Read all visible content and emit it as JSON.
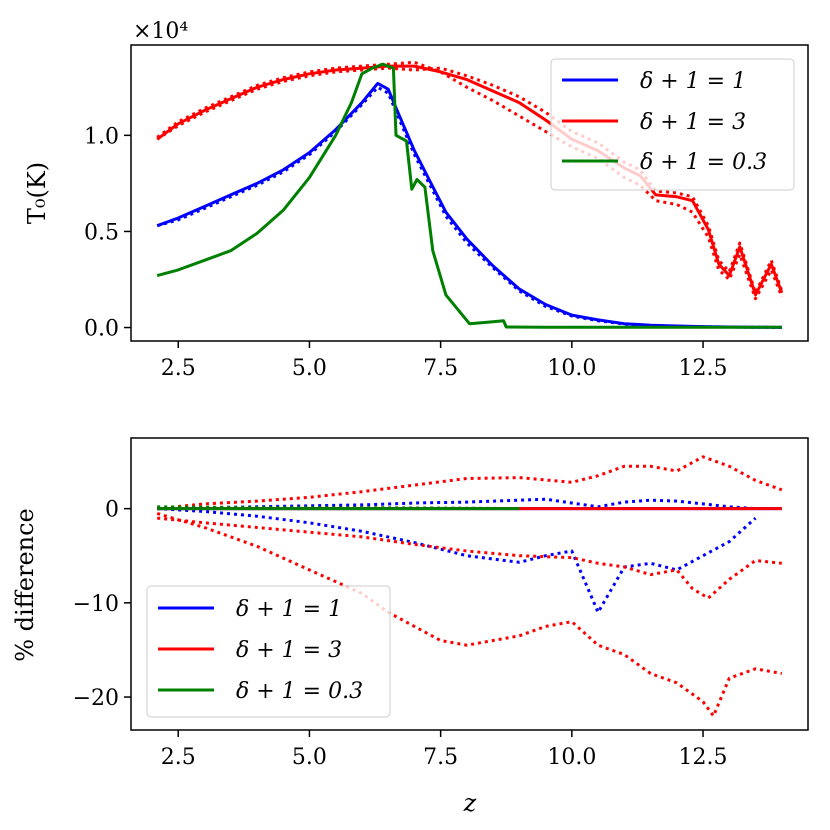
{
  "chart_data": [
    {
      "type": "line",
      "panel": "top",
      "xlabel": "",
      "ylabel": "T_0(K)",
      "ylabel_display": "T₀(K)",
      "y_offset_text": "×10⁴",
      "xlim": [
        1.6,
        14.5
      ],
      "ylim": [
        -0.07,
        1.47
      ],
      "xticks": [
        2.5,
        5.0,
        7.5,
        10.0,
        12.5
      ],
      "xtick_labels": [
        "2.5",
        "5.0",
        "7.5",
        "10.0",
        "12.5"
      ],
      "yticks": [
        0.0,
        0.5,
        1.0
      ],
      "ytick_labels": [
        "0.0",
        "0.5",
        "1.0"
      ],
      "legend_location": "upper right",
      "legend": [
        {
          "label": "δ + 1 = 1",
          "color": "#0000ff"
        },
        {
          "label": "δ + 1 = 3",
          "color": "#ff0000"
        },
        {
          "label": "δ + 1 = 0.3",
          "color": "#008000"
        }
      ],
      "series": [
        {
          "name": "δ + 1 = 1",
          "color": "#0000ff",
          "style": "solid",
          "x": [
            2.1,
            2.5,
            3.0,
            3.5,
            4.0,
            4.5,
            5.0,
            5.5,
            6.0,
            6.3,
            6.5,
            6.7,
            7.0,
            7.3,
            7.6,
            8.0,
            8.5,
            9.0,
            9.5,
            10.0,
            10.5,
            11.0,
            11.5,
            12.0,
            12.5,
            13.0,
            13.5,
            14.0
          ],
          "y": [
            0.53,
            0.57,
            0.63,
            0.69,
            0.75,
            0.82,
            0.91,
            1.03,
            1.17,
            1.27,
            1.24,
            1.11,
            0.92,
            0.76,
            0.6,
            0.46,
            0.32,
            0.2,
            0.12,
            0.065,
            0.04,
            0.02,
            0.012,
            0.008,
            0.005,
            0.003,
            0.002,
            0.001
          ]
        },
        {
          "name": "δ + 1 = 1 (variant)",
          "color": "#0000ff",
          "style": "dotted",
          "x": [
            2.1,
            2.5,
            3.0,
            3.5,
            4.0,
            4.5,
            5.0,
            5.5,
            6.0,
            6.3,
            6.5,
            6.7,
            7.0,
            7.3,
            7.6,
            8.0,
            8.5,
            9.0,
            9.5,
            10.0,
            10.5,
            11.0,
            11.5,
            12.0,
            12.5,
            13.0,
            13.5,
            14.0
          ],
          "y": [
            0.53,
            0.56,
            0.62,
            0.68,
            0.74,
            0.81,
            0.9,
            1.02,
            1.16,
            1.25,
            1.22,
            1.09,
            0.9,
            0.74,
            0.58,
            0.44,
            0.31,
            0.19,
            0.11,
            0.06,
            0.035,
            0.018,
            0.01,
            0.007,
            0.004,
            0.003,
            0.002,
            0.001
          ]
        },
        {
          "name": "δ + 1 = 3",
          "color": "#ff0000",
          "style": "solid",
          "x": [
            2.1,
            2.5,
            3.0,
            3.5,
            4.0,
            4.5,
            5.0,
            5.5,
            6.0,
            6.5,
            7.0,
            7.5,
            8.0,
            8.5,
            9.0,
            9.5,
            10.0,
            10.5,
            11.0,
            11.3,
            11.6,
            12.0,
            12.3,
            12.6,
            12.8,
            13.0,
            13.2,
            13.5,
            13.8,
            14.0
          ],
          "y": [
            0.98,
            1.06,
            1.13,
            1.19,
            1.25,
            1.29,
            1.32,
            1.34,
            1.35,
            1.36,
            1.36,
            1.33,
            1.29,
            1.23,
            1.17,
            1.08,
            0.98,
            0.92,
            0.83,
            0.79,
            0.69,
            0.68,
            0.66,
            0.51,
            0.33,
            0.27,
            0.42,
            0.17,
            0.33,
            0.18
          ]
        },
        {
          "name": "δ + 1 = 3 (variant 1)",
          "color": "#ff0000",
          "style": "dotted",
          "x": [
            2.1,
            2.5,
            3.0,
            3.5,
            4.0,
            4.5,
            5.0,
            5.5,
            6.0,
            6.5,
            7.0,
            7.5,
            8.0,
            8.5,
            9.0,
            9.5,
            10.0,
            10.5,
            11.0,
            11.3,
            11.6,
            12.0,
            12.3,
            12.6,
            12.8,
            13.0,
            13.2,
            13.5,
            13.8,
            14.0
          ],
          "y": [
            0.99,
            1.07,
            1.14,
            1.2,
            1.26,
            1.3,
            1.33,
            1.35,
            1.36,
            1.37,
            1.38,
            1.33,
            1.25,
            1.18,
            1.1,
            1.02,
            0.94,
            0.88,
            0.78,
            0.74,
            0.66,
            0.64,
            0.6,
            0.47,
            0.3,
            0.25,
            0.38,
            0.15,
            0.3,
            0.16
          ]
        },
        {
          "name": "δ + 1 = 3 (variant 2)",
          "color": "#ff0000",
          "style": "dotted",
          "x": [
            2.1,
            2.5,
            3.0,
            3.5,
            4.0,
            4.5,
            5.0,
            5.5,
            6.0,
            6.5,
            7.0,
            7.5,
            8.0,
            8.5,
            9.0,
            9.5,
            10.0,
            10.5,
            11.0,
            11.3,
            11.6,
            12.0,
            12.3,
            12.6,
            12.8,
            13.0,
            13.2,
            13.5,
            13.8,
            14.0
          ],
          "y": [
            0.98,
            1.05,
            1.12,
            1.18,
            1.24,
            1.28,
            1.31,
            1.33,
            1.34,
            1.35,
            1.34,
            1.35,
            1.31,
            1.26,
            1.2,
            1.12,
            1.02,
            0.96,
            0.86,
            0.82,
            0.71,
            0.7,
            0.68,
            0.53,
            0.35,
            0.29,
            0.44,
            0.18,
            0.35,
            0.19
          ]
        },
        {
          "name": "δ + 1 = 0.3",
          "color": "#008000",
          "style": "solid",
          "x": [
            2.1,
            2.5,
            3.0,
            3.5,
            4.0,
            4.5,
            5.0,
            5.5,
            5.8,
            6.0,
            6.2,
            6.4,
            6.6,
            6.65,
            6.85,
            6.95,
            7.05,
            7.2,
            7.35,
            7.6,
            7.9,
            8.05,
            8.5,
            8.7,
            8.75,
            9.5,
            10.0,
            11.0,
            12.0,
            13.0,
            14.0
          ],
          "y": [
            0.27,
            0.3,
            0.35,
            0.4,
            0.49,
            0.61,
            0.78,
            1.0,
            1.17,
            1.32,
            1.35,
            1.37,
            1.35,
            1.0,
            0.97,
            0.72,
            0.77,
            0.73,
            0.4,
            0.17,
            0.07,
            0.02,
            0.03,
            0.035,
            0.003,
            0.002,
            0.002,
            0.002,
            0.002,
            0.002,
            0.002
          ]
        }
      ]
    },
    {
      "type": "line",
      "panel": "bottom",
      "xlabel": "z",
      "ylabel": "% difference",
      "xlim": [
        1.6,
        14.5
      ],
      "ylim": [
        -23.5,
        7.5
      ],
      "xticks": [
        2.5,
        5.0,
        7.5,
        10.0,
        12.5
      ],
      "xtick_labels": [
        "2.5",
        "5.0",
        "7.5",
        "10.0",
        "12.5"
      ],
      "yticks": [
        0,
        -10,
        -20
      ],
      "ytick_labels": [
        "0",
        "−10",
        "−20"
      ],
      "legend_location": "lower left",
      "legend": [
        {
          "label": "δ + 1 = 1",
          "color": "#0000ff"
        },
        {
          "label": "δ + 1 = 3",
          "color": "#ff0000"
        },
        {
          "label": "δ + 1 = 0.3",
          "color": "#008000"
        }
      ],
      "series": [
        {
          "name": "δ + 1 = 1",
          "color": "#0000ff",
          "style": "solid",
          "x": [
            2.1,
            14.0
          ],
          "y": [
            0,
            0
          ]
        },
        {
          "name": "δ + 1 = 1 (variant 1)",
          "color": "#0000ff",
          "style": "dotted",
          "x": [
            2.1,
            3.0,
            4.0,
            5.0,
            6.0,
            7.0,
            8.0,
            9.0,
            9.5,
            10.0,
            10.5,
            11.0,
            11.5,
            12.0,
            12.5,
            13.0,
            13.5
          ],
          "y": [
            0,
            -0.3,
            -0.8,
            -1.5,
            -2.4,
            -3.6,
            -5.0,
            -5.7,
            -5.0,
            -4.5,
            -11.0,
            -6.2,
            -5.8,
            -6.5,
            -5.0,
            -3.5,
            -1.0
          ]
        },
        {
          "name": "δ + 1 = 1 (variant 2)",
          "color": "#0000ff",
          "style": "dotted",
          "x": [
            2.1,
            3.0,
            4.0,
            5.0,
            6.0,
            7.0,
            8.0,
            9.0,
            9.5,
            10.0,
            10.5,
            11.0,
            11.5,
            12.0,
            12.5,
            13.0,
            13.5
          ],
          "y": [
            0,
            0.1,
            0.2,
            0.3,
            0.4,
            0.6,
            0.7,
            0.9,
            1.0,
            0.6,
            0.2,
            0.7,
            0.9,
            0.8,
            0.5,
            0.2,
            0
          ]
        },
        {
          "name": "δ + 1 = 3",
          "color": "#ff0000",
          "style": "solid",
          "x": [
            2.1,
            14.0
          ],
          "y": [
            0,
            0
          ]
        },
        {
          "name": "δ + 1 = 3 (variant 1)",
          "color": "#ff0000",
          "style": "dotted",
          "x": [
            2.1,
            3.0,
            4.0,
            5.0,
            6.0,
            6.5,
            7.0,
            7.5,
            8.0,
            8.5,
            9.0,
            9.5,
            10.0,
            10.5,
            11.0,
            11.5,
            12.0,
            12.5,
            12.7,
            13.0,
            13.5,
            14.0
          ],
          "y": [
            -0.5,
            -2.0,
            -4.0,
            -6.5,
            -9.0,
            -11.0,
            -12.5,
            -14.0,
            -14.5,
            -14.0,
            -13.5,
            -12.5,
            -12.0,
            -14.5,
            -15.5,
            -17.5,
            -18.5,
            -20.5,
            -22.0,
            -18.0,
            -17.0,
            -17.5
          ]
        },
        {
          "name": "δ + 1 = 3 (variant 2)",
          "color": "#ff0000",
          "style": "dotted",
          "x": [
            2.1,
            3.0,
            4.0,
            5.0,
            6.0,
            7.0,
            8.0,
            9.0,
            10.0,
            10.5,
            11.0,
            11.5,
            12.0,
            12.5,
            13.0,
            13.5,
            14.0
          ],
          "y": [
            0,
            0.5,
            0.8,
            1.2,
            1.8,
            2.5,
            3.2,
            3.3,
            2.8,
            3.5,
            4.5,
            4.5,
            4.0,
            5.5,
            4.5,
            3.0,
            2.0
          ]
        },
        {
          "name": "δ + 1 = 3 (variant 3)",
          "color": "#ff0000",
          "style": "dotted",
          "x": [
            2.1,
            3.0,
            4.0,
            5.0,
            6.0,
            7.0,
            8.0,
            9.0,
            10.0,
            10.5,
            11.0,
            11.5,
            12.0,
            12.3,
            12.6,
            13.0,
            13.5,
            14.0
          ],
          "y": [
            -1.0,
            -1.5,
            -2.0,
            -2.5,
            -3.0,
            -3.8,
            -4.5,
            -5.0,
            -5.2,
            -5.8,
            -6.2,
            -7.0,
            -6.5,
            -8.5,
            -9.5,
            -7.5,
            -5.5,
            -5.8
          ]
        },
        {
          "name": "δ + 1 = 0.3",
          "color": "#008000",
          "style": "solid",
          "x": [
            2.1,
            9.0
          ],
          "y": [
            0,
            0
          ]
        },
        {
          "name": "δ + 1 = 0.3 (variant 1)",
          "color": "#008000",
          "style": "dotted",
          "x": [
            2.1,
            4.0,
            6.0,
            8.0,
            9.0
          ],
          "y": [
            0.2,
            0.1,
            0.1,
            0.05,
            0
          ]
        }
      ]
    }
  ]
}
